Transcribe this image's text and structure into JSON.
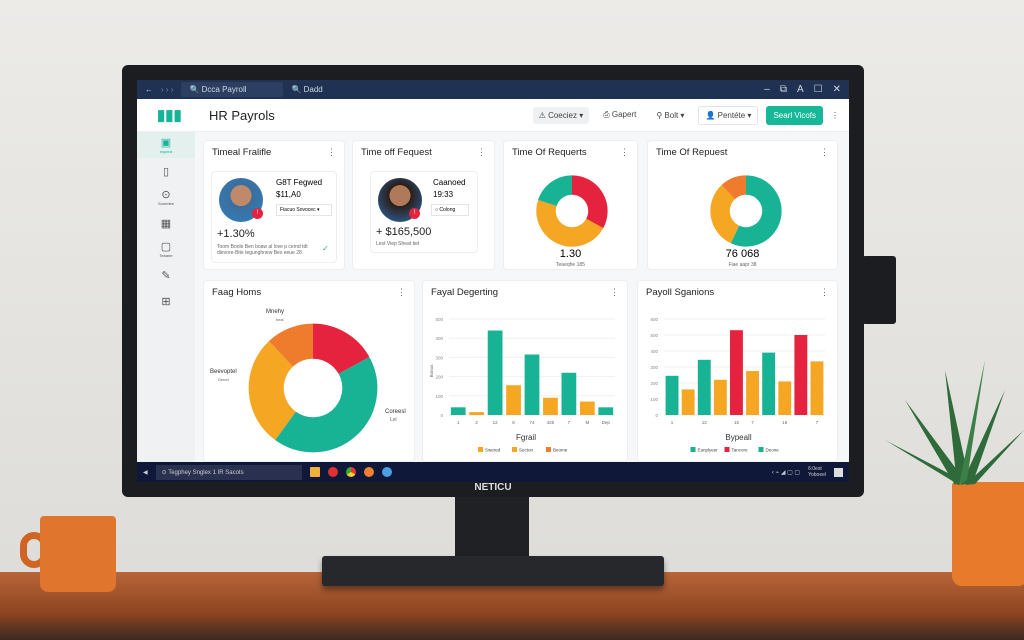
{
  "window": {
    "search": "Dcca Payroll",
    "search2": "Dadd",
    "controls": [
      "–",
      "⧉",
      "A",
      "☐",
      "✕"
    ]
  },
  "app": {
    "title": "HR Payrols",
    "actions": [
      "Coeciez ▾",
      "Gapert",
      "Bolt ▾"
    ],
    "user": "Pentéte ▾",
    "cta": "Searl Vicofs",
    "more": "⋮"
  },
  "sidebar": {
    "items": [
      {
        "icon": "dashboard-icon",
        "label": "espera"
      },
      {
        "icon": "document-icon",
        "label": ""
      },
      {
        "icon": "settings-icon",
        "label": "Sonedee"
      },
      {
        "icon": "calendar-icon",
        "label": ""
      },
      {
        "icon": "file-icon",
        "label": "Teaamr"
      },
      {
        "icon": "pen-icon",
        "label": ""
      },
      {
        "icon": "gallery-icon",
        "label": ""
      }
    ]
  },
  "cards": {
    "profile1": {
      "title": "Timeal Fralifle",
      "name": "G8T Fegwed",
      "amount": "$11,A0",
      "select": "Fiacuo Sovocec",
      "stat": "+1.30%",
      "desc": "Toom Bonle Ben boaw al love p cemd tdt dievore-Bite tegunghnew Bes eeue 28."
    },
    "profile2": {
      "title": "Time off Fequest",
      "name": "Caanoed",
      "time": "19:33",
      "status": "Colong",
      "stat": "+ $165,500",
      "desc": "Lest Viep Sheat tiet"
    },
    "donut1": {
      "title": "Time Of Requerts",
      "value": "1.30",
      "caption": "Teaeqhe 185"
    },
    "donut2": {
      "title": "Time Of Repuest",
      "value": "76 068",
      "caption": "Fiae aapr 38"
    },
    "payhours": {
      "title": "Faag Homs",
      "labels": [
        "Mnehy",
        "Beevoptel",
        "Coreesl"
      ],
      "sublabels": [
        "beal",
        "Denet",
        "Lel"
      ]
    },
    "departing": {
      "title": "Fayal Degerting"
    },
    "sessions": {
      "title": "Payoll Sganions"
    }
  },
  "chart_data": [
    {
      "type": "pie",
      "title": "Time Of Requerts",
      "values": [
        33,
        47,
        20
      ],
      "colors": [
        "#e6233f",
        "#f5a623",
        "#17b394"
      ]
    },
    {
      "type": "pie",
      "title": "Time Of Repuest",
      "values": [
        57,
        31,
        12
      ],
      "colors": [
        "#17b394",
        "#f5a623",
        "#ef7b2d"
      ]
    },
    {
      "type": "pie",
      "title": "Faag Homs",
      "values": [
        17,
        43,
        28,
        12
      ],
      "colors": [
        "#e6233f",
        "#17b394",
        "#f5a623",
        "#ef7b2d"
      ]
    },
    {
      "type": "bar",
      "title": "Fayal Degerting",
      "xlabel": "Fgrail",
      "ylabel": "Bonus",
      "ylim": [
        0,
        500
      ],
      "yticks": [
        "0",
        "100",
        "200",
        "300",
        "400",
        "500"
      ],
      "categories": [
        "1",
        "2",
        "12",
        "8",
        "74",
        "425",
        "7",
        "M",
        "Dep"
      ],
      "values": [
        40,
        15,
        440,
        155,
        315,
        90,
        220,
        70,
        40
      ],
      "colors": [
        "#17b394",
        "#f5a623",
        "#17b394",
        "#f5a623",
        "#17b394",
        "#f5a623",
        "#17b394",
        "#f5a623",
        "#17b394"
      ],
      "legend": [
        {
          "name": "Swered",
          "color": "#f5a623"
        },
        {
          "name": "Secton",
          "color": "#f5a623"
        },
        {
          "name": "Beome",
          "color": "#ef7b2d"
        }
      ]
    },
    {
      "type": "bar",
      "title": "Payoll Sganions",
      "xlabel": "Bypeall",
      "ylim": [
        0,
        600
      ],
      "yticks": [
        "0",
        "100",
        "200",
        "300",
        "400",
        "500",
        "600"
      ],
      "categories": [
        "1",
        "",
        "12",
        "",
        "15",
        "7",
        "",
        "16",
        "",
        "7"
      ],
      "values": [
        245,
        160,
        345,
        220,
        530,
        275,
        390,
        210,
        500,
        335
      ],
      "colors": [
        "#17b394",
        "#f5a623",
        "#17b394",
        "#f5a623",
        "#e6233f",
        "#f5a623",
        "#17b394",
        "#f5a623",
        "#e6233f",
        "#f5a623"
      ],
      "legend": [
        {
          "name": "Eanplyeer",
          "color": "#17b394"
        },
        {
          "name": "Tancore",
          "color": "#e6233f"
        },
        {
          "name": "Deone",
          "color": "#17b394"
        }
      ]
    }
  ],
  "taskbar": {
    "search": "Tegphey Snglex 1 IR Sacots",
    "clock": "6:0est",
    "date": "Yoboeel"
  },
  "monitor": {
    "brand": "NETICU"
  }
}
